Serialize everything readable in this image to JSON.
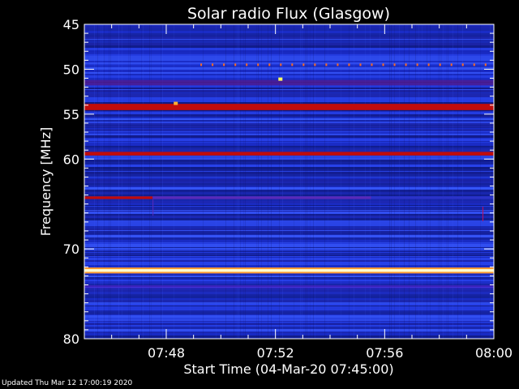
{
  "chart_data": {
    "type": "heatmap",
    "title": "Solar radio Flux (Glasgow)",
    "xlabel": "Start Time (04-Mar-20 07:45:00)",
    "ylabel": "Frequency [MHz]",
    "x_range": [
      "07:45",
      "08:00"
    ],
    "y_range": [
      45,
      80
    ],
    "y_inverted": true,
    "x_ticks": [
      "07:48",
      "07:52",
      "07:56",
      "08:00"
    ],
    "y_ticks": [
      45,
      50,
      55,
      60,
      70,
      80
    ],
    "colormap": [
      "#0a0a6e",
      "#1d2fd6",
      "#3a5cff",
      "#a0103a",
      "#e01010",
      "#ff9a30",
      "#ffff70",
      "#ffffff"
    ],
    "background_color": "#1e32d2",
    "bands": [
      {
        "freq": 54.2,
        "width_mhz": 0.7,
        "intensity": "strong",
        "color": "#c00c0c"
      },
      {
        "freq": 59.4,
        "width_mhz": 0.4,
        "intensity": "strong",
        "color": "#c00c0c"
      },
      {
        "freq": 72.4,
        "width_mhz": 0.3,
        "intensity": "very-strong",
        "color": "#ffffd0"
      },
      {
        "freq": 51.5,
        "width_mhz": 0.6,
        "intensity": "moderate",
        "color": "#5a1a8a"
      },
      {
        "freq": 74.2,
        "width_mhz": 0.3,
        "intensity": "moderate",
        "color": "#4a22c8"
      },
      {
        "freq": 64.3,
        "width_mhz": 0.3,
        "intensity": "segmented",
        "color": "#c00c0c"
      }
    ],
    "events": [
      {
        "time": "07:48:20",
        "freq": 53.8,
        "color": "#ffb030"
      },
      {
        "time": "07:52:10",
        "freq": 51.1,
        "color": "#ffff60"
      }
    ]
  },
  "footer": {
    "updated": "Updated Thu Mar 12 17:00:19 2020"
  }
}
